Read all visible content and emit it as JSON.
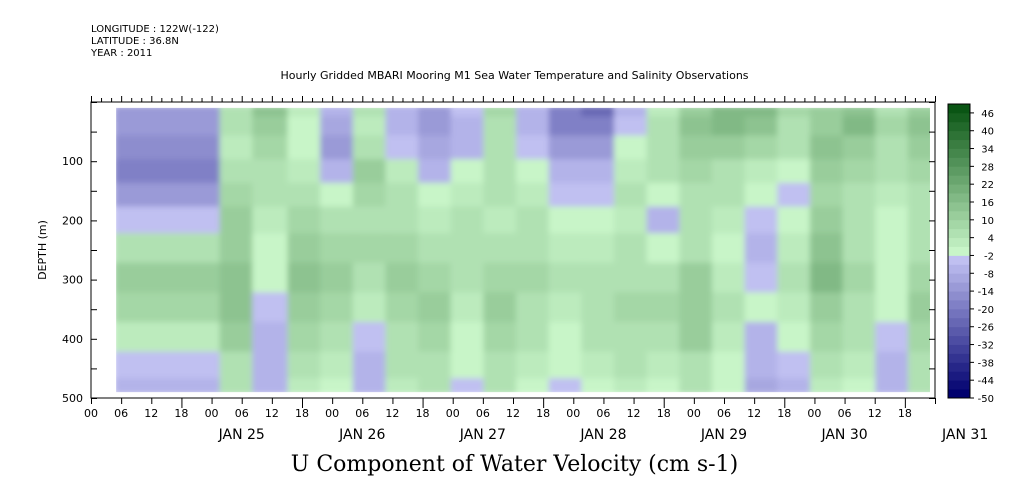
{
  "header": {
    "longitude": "LONGITUDE : 122W(-122)",
    "latitude": "LATITUDE : 36.8N",
    "year": "YEAR : 2011",
    "plot_title": "Hourly Gridded MBARI Mooring M1 Sea Water Temperature and Salinity Observations"
  },
  "chart_data": {
    "type": "heatmap",
    "title": "U Component of Water Velocity (cm s-1)",
    "subtitle": "Hourly Gridded MBARI Mooring M1 Sea Water Temperature and Salinity Observations",
    "ylabel": "DEPTH (m)",
    "xlabel": "",
    "x_range_hours": [
      -18,
      150
    ],
    "data_x_range_hours": [
      -13,
      149
    ],
    "ylim": [
      500,
      0
    ],
    "data_depth_range": [
      10,
      490
    ],
    "y_ticks": [
      100,
      200,
      300,
      400,
      500
    ],
    "x_tick_labels": [
      "00",
      "06",
      "12",
      "18",
      "00",
      "06",
      "12",
      "18",
      "00",
      "06",
      "12",
      "18",
      "00",
      "06",
      "12",
      "18",
      "00",
      "06",
      "12",
      "18",
      "00",
      "06",
      "12",
      "18",
      "00",
      "06",
      "12",
      "18"
    ],
    "date_labels": [
      "JAN 25",
      "JAN 26",
      "JAN 27",
      "JAN 28",
      "JAN 29",
      "JAN 30",
      "JAN 31"
    ],
    "colorbar": {
      "levels": [
        -50,
        -47,
        -44,
        -41,
        -38,
        -35,
        -32,
        -29,
        -26,
        -23,
        -20,
        -17,
        -14,
        -11,
        -8,
        -5,
        -2,
        1,
        4,
        7,
        10,
        13,
        16,
        19,
        22,
        25,
        28,
        31,
        34,
        37,
        40,
        43,
        46,
        49
      ],
      "labels": [
        "46",
        "40",
        "34",
        "28",
        "22",
        "16",
        "10",
        "4",
        "-2",
        "-8",
        "-14",
        "-20",
        "-26",
        "-32",
        "-38",
        "-44",
        "-50"
      ]
    },
    "columns_day_hour": [
      "25-05",
      "25-11",
      "25-18",
      "26-01",
      "26-07",
      "26-14",
      "26-20",
      "27-03",
      "27-09",
      "27-16",
      "27-22",
      "28-05",
      "28-11",
      "28-18",
      "29-00",
      "29-07",
      "29-13",
      "29-20",
      "30-02",
      "30-09",
      "30-15",
      "30-22",
      "31-04",
      "31-11",
      "31-17",
      "31-22"
    ],
    "rows_depth_m": [
      15,
      40,
      80,
      120,
      160,
      200,
      250,
      300,
      350,
      400,
      450,
      490
    ],
    "grid": [
      [
        -14,
        6,
        14,
        2,
        -8,
        4,
        -6,
        -12,
        -4,
        8,
        -6,
        -20,
        -24,
        -6,
        2,
        12,
        16,
        18,
        8,
        10,
        14,
        6,
        12,
        16,
        14,
        8
      ],
      [
        -12,
        4,
        12,
        0,
        -10,
        2,
        -8,
        -14,
        -6,
        6,
        -8,
        -18,
        -20,
        -4,
        4,
        14,
        18,
        14,
        6,
        12,
        16,
        8,
        14,
        14,
        12,
        6
      ],
      [
        -16,
        2,
        8,
        -2,
        -12,
        6,
        -4,
        -10,
        -8,
        4,
        -4,
        -12,
        -14,
        -2,
        6,
        12,
        10,
        8,
        4,
        14,
        12,
        6,
        12,
        10,
        8,
        4
      ],
      [
        -18,
        4,
        6,
        2,
        -6,
        10,
        2,
        -6,
        -2,
        6,
        0,
        -8,
        -6,
        2,
        4,
        8,
        6,
        2,
        0,
        10,
        8,
        4,
        8,
        8,
        6,
        2
      ],
      [
        -12,
        8,
        4,
        6,
        -2,
        8,
        4,
        -2,
        2,
        4,
        2,
        -4,
        -4,
        4,
        -2,
        6,
        4,
        -2,
        -4,
        8,
        6,
        2,
        6,
        10,
        4,
        0
      ],
      [
        -4,
        10,
        2,
        8,
        4,
        6,
        6,
        2,
        4,
        2,
        4,
        -2,
        0,
        2,
        -6,
        4,
        2,
        -4,
        -2,
        10,
        4,
        0,
        4,
        12,
        6,
        2
      ],
      [
        6,
        12,
        0,
        12,
        8,
        8,
        8,
        6,
        6,
        4,
        6,
        2,
        2,
        4,
        -2,
        6,
        0,
        -6,
        2,
        14,
        6,
        -2,
        6,
        14,
        8,
        4
      ],
      [
        10,
        14,
        -2,
        14,
        10,
        6,
        10,
        8,
        4,
        8,
        8,
        4,
        4,
        6,
        4,
        10,
        2,
        -4,
        4,
        16,
        8,
        0,
        8,
        16,
        10,
        6
      ],
      [
        8,
        14,
        -4,
        12,
        8,
        2,
        8,
        10,
        2,
        10,
        6,
        2,
        6,
        8,
        8,
        12,
        4,
        -2,
        2,
        12,
        6,
        -2,
        10,
        14,
        8,
        4
      ],
      [
        2,
        10,
        -6,
        8,
        4,
        -4,
        6,
        8,
        0,
        8,
        4,
        0,
        4,
        6,
        6,
        10,
        2,
        -6,
        0,
        8,
        4,
        -4,
        8,
        10,
        4,
        2
      ],
      [
        -4,
        6,
        -8,
        4,
        2,
        -6,
        4,
        6,
        -2,
        6,
        2,
        -2,
        2,
        4,
        2,
        6,
        0,
        -8,
        -4,
        4,
        2,
        -6,
        6,
        6,
        -2,
        0
      ],
      [
        -6,
        4,
        -8,
        2,
        0,
        -8,
        2,
        4,
        -4,
        4,
        0,
        -4,
        0,
        2,
        0,
        4,
        -2,
        -10,
        -6,
        2,
        0,
        -8,
        4,
        4,
        -4,
        -2
      ]
    ]
  }
}
